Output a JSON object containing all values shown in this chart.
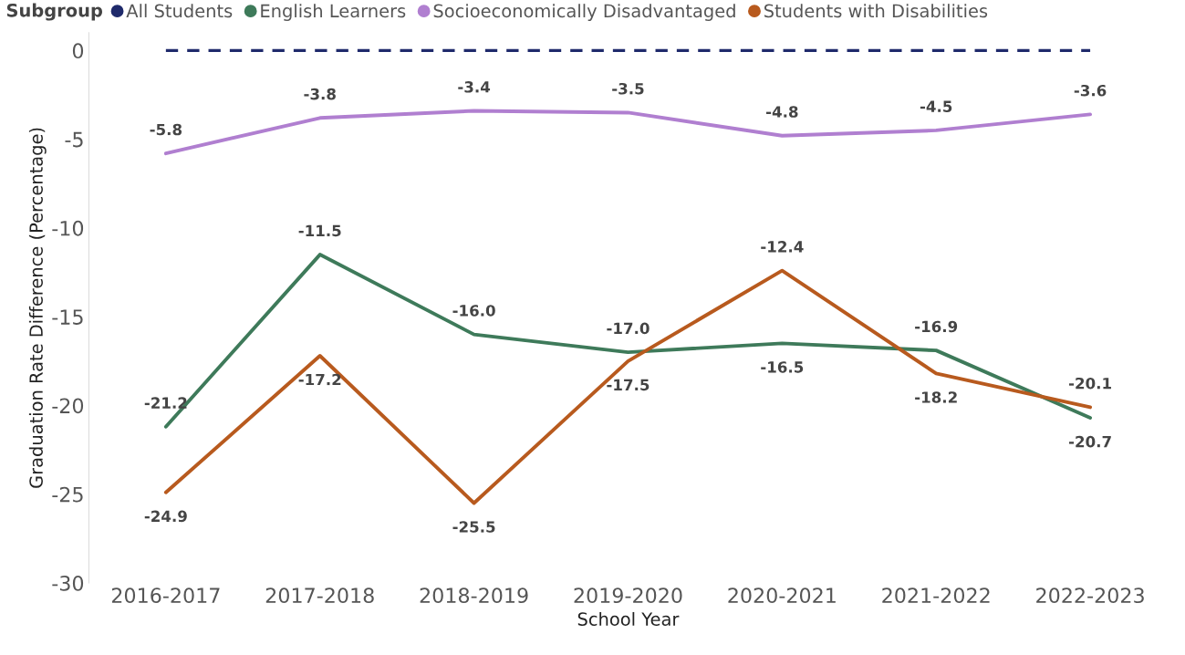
{
  "chart_data": {
    "type": "line",
    "xlabel": "School Year",
    "ylabel": "Graduation Rate Difference (Percentage)",
    "legend_title": "Subgroup",
    "legend": "top",
    "categories": [
      "2016-2017",
      "2017-2018",
      "2018-2019",
      "2019-2020",
      "2020-2021",
      "2021-2022",
      "2022-2023"
    ],
    "ylim": [
      -30,
      1
    ],
    "yticks": [
      0,
      -5,
      -10,
      -15,
      -20,
      -25,
      -30
    ],
    "grid": false,
    "marker": "none",
    "series": [
      {
        "name": "All Students",
        "color": "#1f2a6b",
        "line_style": "dashed",
        "values": [
          0,
          0,
          0,
          0,
          0,
          0,
          0
        ]
      },
      {
        "name": "English Learners",
        "color": "#3e7a5a",
        "line_style": "solid",
        "values": [
          -21.2,
          -11.5,
          -16.0,
          -17.0,
          -16.5,
          -16.9,
          -20.7
        ],
        "value_labels": [
          "-21.2",
          "-11.5",
          "-16.0",
          "-17.0",
          "-16.5",
          "-16.9",
          "-20.7"
        ]
      },
      {
        "name": "Socioeconomically Disadvantaged",
        "color": "#b07fd0",
        "line_style": "solid",
        "values": [
          -5.8,
          -3.8,
          -3.4,
          -3.5,
          -4.8,
          -4.5,
          -3.6
        ],
        "value_labels": [
          "-5.8",
          "-3.8",
          "-3.4",
          "-3.5",
          "-4.8",
          "-4.5",
          "-3.6"
        ]
      },
      {
        "name": "Students with Disabilities",
        "color": "#b85a1e",
        "line_style": "solid",
        "values": [
          -24.9,
          -17.2,
          -25.5,
          -17.5,
          -12.4,
          -18.2,
          -20.1
        ],
        "value_labels": [
          "-24.9",
          "-17.2",
          "-25.5",
          "-17.5",
          "-12.4",
          "-18.2",
          "-20.1"
        ]
      }
    ]
  }
}
